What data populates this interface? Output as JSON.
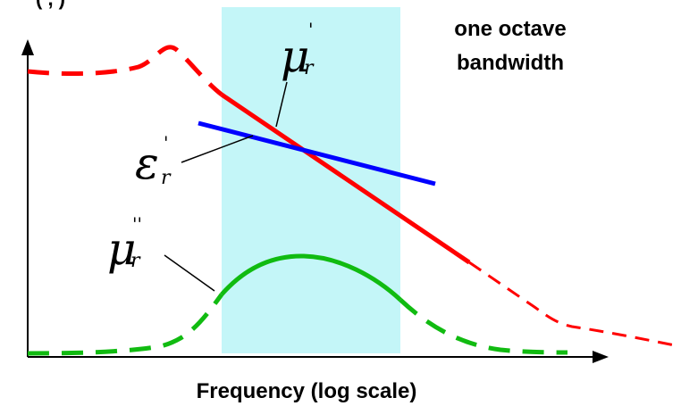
{
  "top_left_fragment": "(  ,  )",
  "band_label_line1": "one octave",
  "band_label_line2": "bandwidth",
  "x_axis_label": "Frequency (log scale)",
  "curves": {
    "mu_prime": {
      "base": "μ",
      "sub": "r",
      "prime": "'"
    },
    "eps_prime": {
      "base": "ε",
      "sub": "r",
      "prime": "'"
    },
    "mu_double_prime": {
      "base": "μ",
      "sub": "r",
      "prime": "''"
    }
  },
  "colors": {
    "band": "#c4f6f8",
    "mu_prime": "#ff0000",
    "eps_prime": "#0000ff",
    "mu_double_prime": "#11bb11",
    "axis": "#000000"
  }
}
